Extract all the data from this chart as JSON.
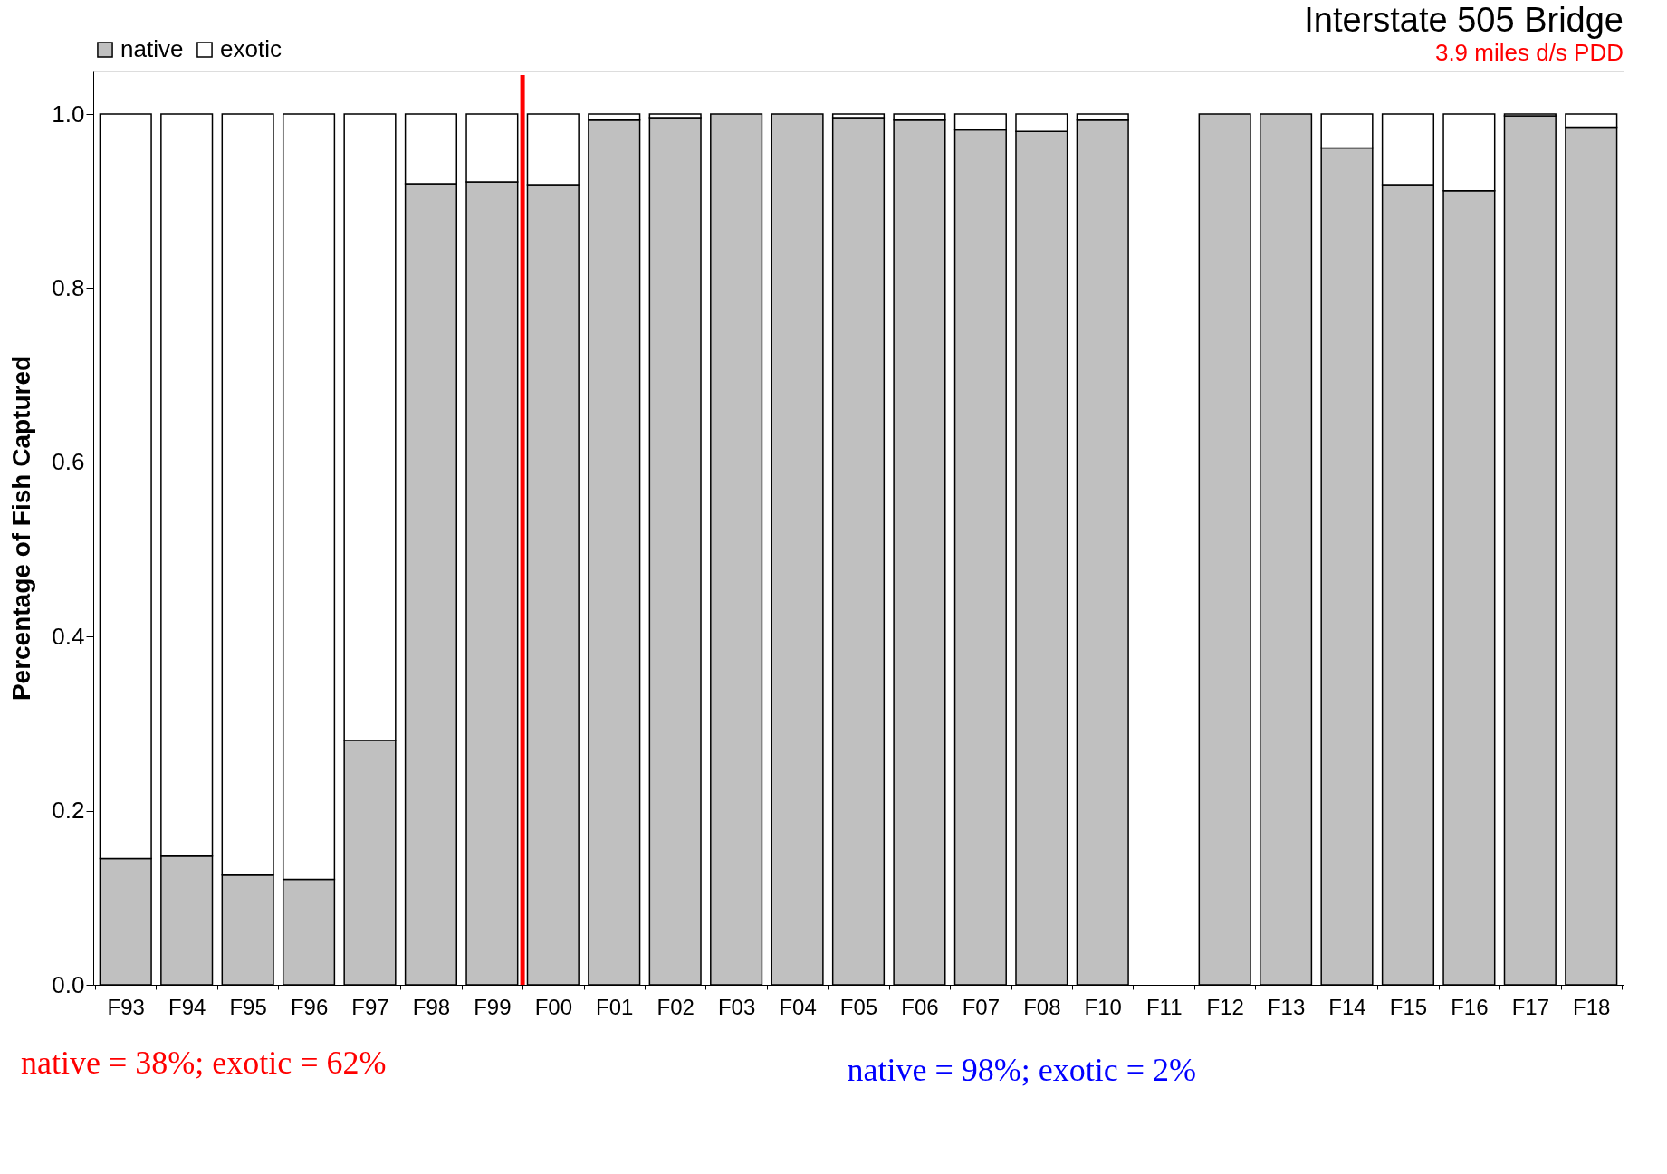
{
  "chart_data": {
    "type": "bar",
    "stacked": true,
    "title": "Interstate 505 Bridge",
    "subtitle": "3.9 miles d/s PDD",
    "ylabel": "Percentage of Fish Captured",
    "categories": [
      "F93",
      "F94",
      "F95",
      "F96",
      "F97",
      "F98",
      "F99",
      "F00",
      "F01",
      "F02",
      "F03",
      "F04",
      "F05",
      "F06",
      "F07",
      "F08",
      "F10",
      "F11",
      "F12",
      "F13",
      "F14",
      "F15",
      "F16",
      "F17",
      "F18"
    ],
    "series": [
      {
        "name": "native",
        "color": "#c0c0c0",
        "values": [
          0.145,
          0.148,
          0.126,
          0.121,
          0.281,
          0.92,
          0.922,
          0.919,
          0.993,
          0.996,
          1.0,
          1.0,
          0.996,
          0.993,
          0.982,
          0.98,
          0.993,
          null,
          1.0,
          1.0,
          0.961,
          0.919,
          0.912,
          0.998,
          0.985
        ]
      },
      {
        "name": "exotic",
        "color": "#ffffff",
        "values": [
          0.855,
          0.852,
          0.874,
          0.879,
          0.719,
          0.08,
          0.078,
          0.081,
          0.007,
          0.004,
          null,
          null,
          0.004,
          0.007,
          0.018,
          0.02,
          0.007,
          null,
          null,
          null,
          0.039,
          0.081,
          0.088,
          0.002,
          0.015
        ]
      }
    ],
    "ylim": [
      0,
      1.05
    ],
    "yticks": [
      {
        "value": 0,
        "label": "0.0"
      },
      {
        "value": 0.2,
        "label": "0.2"
      },
      {
        "value": 0.4,
        "label": "0.4"
      },
      {
        "value": 0.6,
        "label": "0.6"
      },
      {
        "value": 0.8,
        "label": "0.8"
      },
      {
        "value": 1.0,
        "label": "1.0"
      }
    ],
    "grid": false,
    "legend": "top left",
    "ref_lines": [
      {
        "axis": "x",
        "value": "F00",
        "color": "#ff0000"
      }
    ],
    "annotations": [
      "native = 38%; exotic = 62%",
      "native = 98%; exotic = 2%"
    ]
  }
}
